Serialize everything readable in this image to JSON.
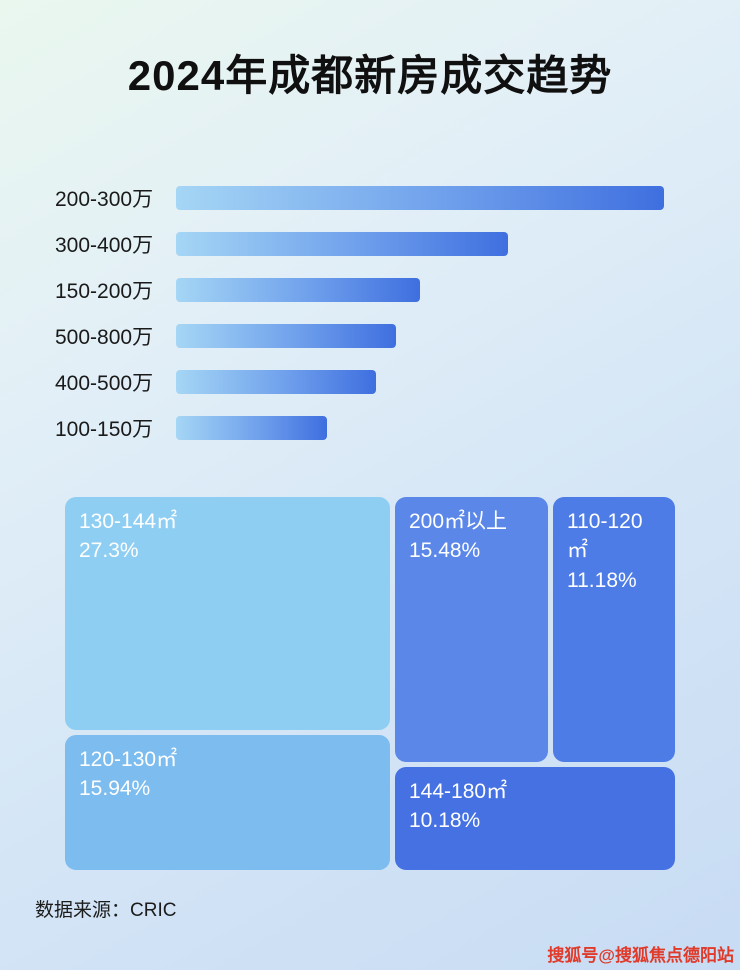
{
  "page": {
    "title": "2024年成都新房成交趋势",
    "source": "数据来源：CRIC",
    "watermark": "搜狐号@搜狐焦点德阳站"
  },
  "chart_data": [
    {
      "type": "bar",
      "orientation": "horizontal",
      "title": "2024年成都新房成交趋势",
      "categories": [
        "200-300万",
        "300-400万",
        "150-200万",
        "500-800万",
        "400-500万",
        "100-150万"
      ],
      "values": [
        100,
        68,
        50,
        45,
        41,
        31
      ],
      "value_unit": "relative_length_percent_of_longest_bar",
      "value_labels_shown": false,
      "grid": false,
      "legend": "none",
      "bar_gradient": [
        "#a5d6f5",
        "#3f6fdf"
      ]
    },
    {
      "type": "treemap",
      "title": "",
      "cells": [
        {
          "label": "130-144㎡",
          "value": 27.3,
          "display": "27.3%",
          "color": "#8fcef3"
        },
        {
          "label": "120-130㎡",
          "value": 15.94,
          "display": "15.94%",
          "color": "#7cbcee"
        },
        {
          "label": "200㎡以上",
          "value": 15.48,
          "display": "15.48%",
          "color": "#5b88e8"
        },
        {
          "label": "110-120㎡",
          "value": 11.18,
          "display": "11.18%",
          "color": "#4d7ce6"
        },
        {
          "label": "144-180㎡",
          "value": 10.18,
          "display": "10.18%",
          "color": "#4671e2"
        }
      ]
    }
  ]
}
